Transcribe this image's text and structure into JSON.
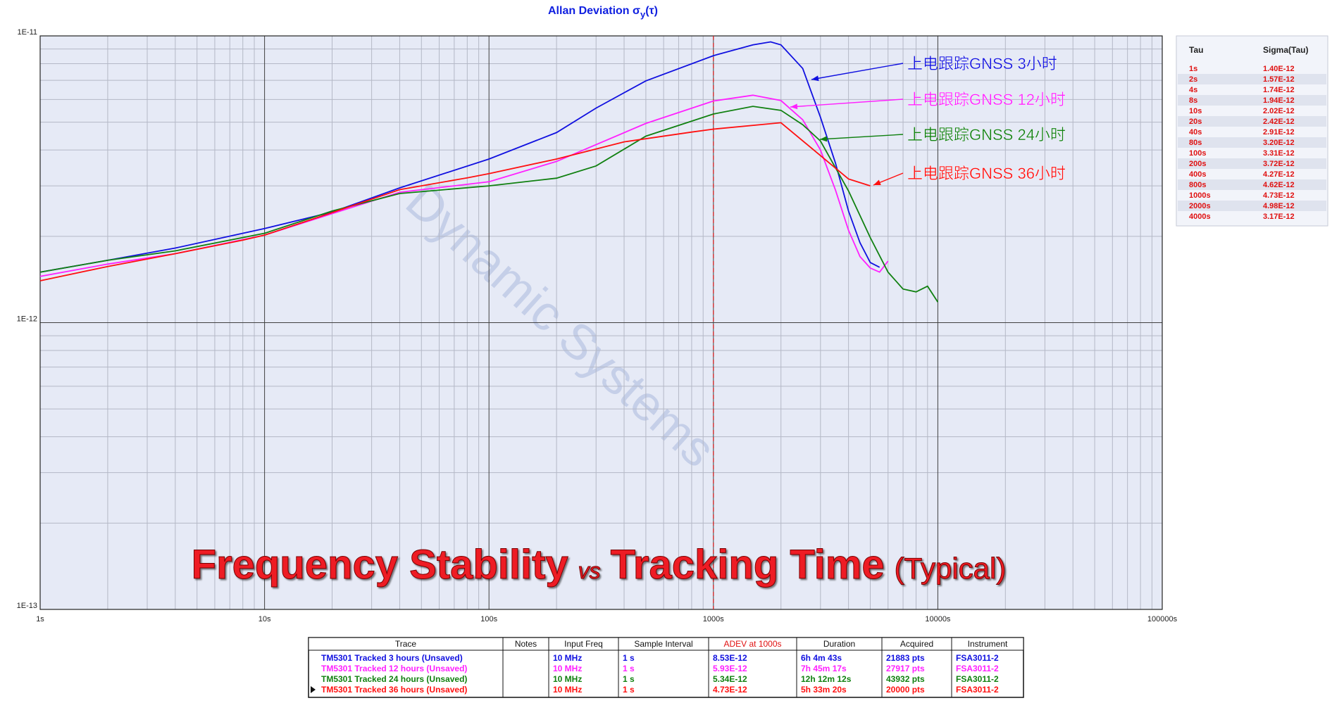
{
  "chart_data": {
    "type": "line",
    "title": "Allan Deviation σ",
    "title_sub": "y",
    "title_suffix": "(τ)",
    "xscale": "log",
    "yscale": "log",
    "grid": true,
    "xlim": [
      1,
      100000
    ],
    "xticks": [
      {
        "value": 1,
        "label": "1s"
      },
      {
        "value": 10,
        "label": "10s"
      },
      {
        "value": 100,
        "label": "100s"
      },
      {
        "value": 1000,
        "label": "1000s"
      },
      {
        "value": 10000,
        "label": "10000s"
      },
      {
        "value": 100000,
        "label": "100000s"
      }
    ],
    "ylim": [
      1e-13,
      1e-11
    ],
    "yticks": [
      {
        "value": 1e-13,
        "label": "1E-13"
      },
      {
        "value": 1e-12,
        "label": "1E-12"
      },
      {
        "value": 1e-11,
        "label": "1E-11"
      }
    ],
    "reference_line": {
      "x": 1000,
      "color": "#e02020"
    },
    "series": [
      {
        "name": "上电跟踪GNSS 3小时",
        "color": "#1010e0",
        "x": [
          1,
          2,
          4,
          10,
          20,
          40,
          100,
          200,
          300,
          500,
          1000,
          1500,
          1800,
          2000,
          2500,
          3000,
          3500,
          4000,
          4500,
          5000,
          5500
        ],
        "values": [
          1.5e-12,
          1.65e-12,
          1.82e-12,
          2.13e-12,
          2.43e-12,
          2.95e-12,
          3.72e-12,
          4.6e-12,
          5.6e-12,
          6.97e-12,
          8.53e-12,
          9.3e-12,
          9.53e-12,
          9.3e-12,
          7.7e-12,
          5.2e-12,
          3.6e-12,
          2.45e-12,
          1.9e-12,
          1.62e-12,
          1.56e-12
        ]
      },
      {
        "name": "上电跟踪GNSS 12小时",
        "color": "#ff20ff",
        "x": [
          1,
          2,
          4,
          10,
          20,
          40,
          100,
          200,
          500,
          1000,
          1500,
          2000,
          2500,
          3000,
          3500,
          4000,
          4500,
          5000,
          5500,
          6000
        ],
        "values": [
          1.45e-12,
          1.6e-12,
          1.74e-12,
          2.02e-12,
          2.4e-12,
          2.85e-12,
          3.1e-12,
          3.65e-12,
          4.95e-12,
          5.93e-12,
          6.21e-12,
          5.95e-12,
          5.1e-12,
          4e-12,
          2.9e-12,
          2.1e-12,
          1.7e-12,
          1.55e-12,
          1.5e-12,
          1.64e-12
        ]
      },
      {
        "name": "上电跟踪GNSS 24小时",
        "color": "#108010",
        "x": [
          1,
          2,
          4,
          10,
          20,
          40,
          100,
          200,
          300,
          500,
          1000,
          1500,
          2000,
          2500,
          3000,
          4000,
          5000,
          6000,
          7000,
          8000,
          9000,
          10000
        ],
        "values": [
          1.5e-12,
          1.65e-12,
          1.78e-12,
          2.05e-12,
          2.45e-12,
          2.82e-12,
          3e-12,
          3.19e-12,
          3.52e-12,
          4.47e-12,
          5.34e-12,
          5.68e-12,
          5.5e-12,
          4.9e-12,
          4.3e-12,
          2.88e-12,
          1.98e-12,
          1.5e-12,
          1.31e-12,
          1.28e-12,
          1.34e-12,
          1.18e-12
        ]
      },
      {
        "name": "上电跟踪GNSS 36小时",
        "color": "#ff1010",
        "x": [
          1,
          2,
          4,
          8,
          10,
          20,
          40,
          80,
          100,
          200,
          400,
          800,
          1000,
          2000,
          4000,
          5000
        ],
        "values": [
          1.4e-12,
          1.57e-12,
          1.74e-12,
          1.94e-12,
          2.02e-12,
          2.42e-12,
          2.91e-12,
          3.2e-12,
          3.31e-12,
          3.72e-12,
          4.27e-12,
          4.62e-12,
          4.73e-12,
          4.98e-12,
          3.17e-12,
          3e-12
        ]
      }
    ]
  },
  "headline": [
    "Frequency Stability",
    "vs",
    "Tracking Time",
    "(Typical)"
  ],
  "watermark": "Dynamic Systems",
  "tau_table": {
    "columns": [
      "Tau",
      "Sigma(Tau)"
    ],
    "rows": [
      [
        "1s",
        "1.40E-12"
      ],
      [
        "2s",
        "1.57E-12"
      ],
      [
        "4s",
        "1.74E-12"
      ],
      [
        "8s",
        "1.94E-12"
      ],
      [
        "10s",
        "2.02E-12"
      ],
      [
        "20s",
        "2.42E-12"
      ],
      [
        "40s",
        "2.91E-12"
      ],
      [
        "80s",
        "3.20E-12"
      ],
      [
        "100s",
        "3.31E-12"
      ],
      [
        "200s",
        "3.72E-12"
      ],
      [
        "400s",
        "4.27E-12"
      ],
      [
        "800s",
        "4.62E-12"
      ],
      [
        "1000s",
        "4.73E-12"
      ],
      [
        "2000s",
        "4.98E-12"
      ],
      [
        "4000s",
        "3.17E-12"
      ]
    ]
  },
  "trace_table": {
    "columns": [
      "Trace",
      "Notes",
      "Input Freq",
      "Sample Interval",
      "ADEV at 1000s",
      "Duration",
      "Acquired",
      "Instrument"
    ],
    "rows": [
      [
        "TM5301 Tracked 3 hours (Unsaved)",
        "",
        "10 MHz",
        "1 s",
        "8.53E-12",
        "6h 4m 43s",
        "21883 pts",
        "FSA3011-2"
      ],
      [
        "TM5301 Tracked 12 hours (Unsaved)",
        "",
        "10 MHz",
        "1 s",
        "5.93E-12",
        "7h 45m 17s",
        "27917 pts",
        "FSA3011-2"
      ],
      [
        "TM5301 Tracked 24 hours (Unsaved)",
        "",
        "10 MHz",
        "1 s",
        "5.34E-12",
        "12h 12m 12s",
        "43932 pts",
        "FSA3011-2"
      ],
      [
        "TM5301 Tracked 36 hours (Unsaved)",
        "",
        "10 MHz",
        "1 s",
        "4.73E-12",
        "5h 33m 20s",
        "20000 pts",
        "FSA3011-2"
      ]
    ]
  }
}
